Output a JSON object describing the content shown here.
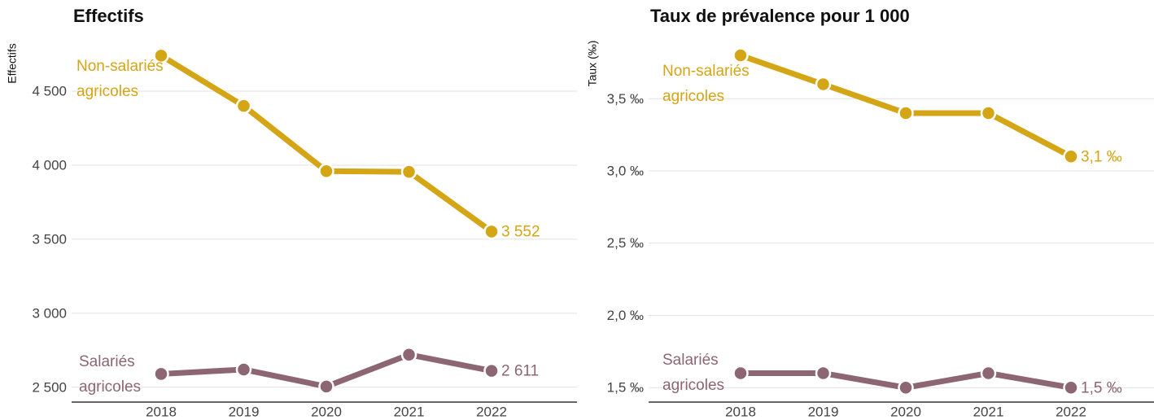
{
  "chart_data": [
    {
      "type": "line",
      "title": "Effectifs",
      "y_label": "Effectifs",
      "categories": [
        "2018",
        "2019",
        "2020",
        "2021",
        "2022"
      ],
      "ylim": [
        2400,
        4860
      ],
      "yticks": [
        {
          "value": 2500,
          "label": "2 500"
        },
        {
          "value": 3000,
          "label": "3 000"
        },
        {
          "value": 3500,
          "label": "3 500"
        },
        {
          "value": 4000,
          "label": "4 000"
        },
        {
          "value": 4500,
          "label": "4 500"
        }
      ],
      "grid": true,
      "series": [
        {
          "name": "Non-salariés agricoles",
          "color": "#d4a514",
          "values": [
            4740,
            4400,
            3960,
            3955,
            3552
          ],
          "value_labels": [
            null,
            null,
            null,
            null,
            "3 552"
          ]
        },
        {
          "name": "Salariés agricoles",
          "color": "#8c6673",
          "values": [
            2590,
            2620,
            2505,
            2720,
            2611
          ],
          "value_labels": [
            null,
            null,
            null,
            null,
            "2 611"
          ]
        }
      ]
    },
    {
      "type": "line",
      "title": "Taux de prévalence pour 1 000",
      "y_label": "Taux (‰)",
      "categories": [
        "2018",
        "2019",
        "2020",
        "2021",
        "2022"
      ],
      "ylim": [
        1.4,
        3.95
      ],
      "yticks": [
        {
          "value": 1.5,
          "label": "1,5 ‰"
        },
        {
          "value": 2.0,
          "label": "2,0 ‰"
        },
        {
          "value": 2.5,
          "label": "2,5 ‰"
        },
        {
          "value": 3.0,
          "label": "3,0 ‰"
        },
        {
          "value": 3.5,
          "label": "3,5 ‰"
        }
      ],
      "grid": true,
      "series": [
        {
          "name": "Non-salariés agricoles",
          "color": "#d4a514",
          "values": [
            3.8,
            3.6,
            3.4,
            3.4,
            3.1
          ],
          "value_labels": [
            null,
            null,
            null,
            null,
            "3,1 ‰"
          ]
        },
        {
          "name": "Salariés agricoles",
          "color": "#8c6673",
          "values": [
            1.6,
            1.6,
            1.5,
            1.6,
            1.5
          ],
          "value_labels": [
            null,
            null,
            null,
            null,
            "1,5 ‰"
          ]
        }
      ]
    }
  ]
}
